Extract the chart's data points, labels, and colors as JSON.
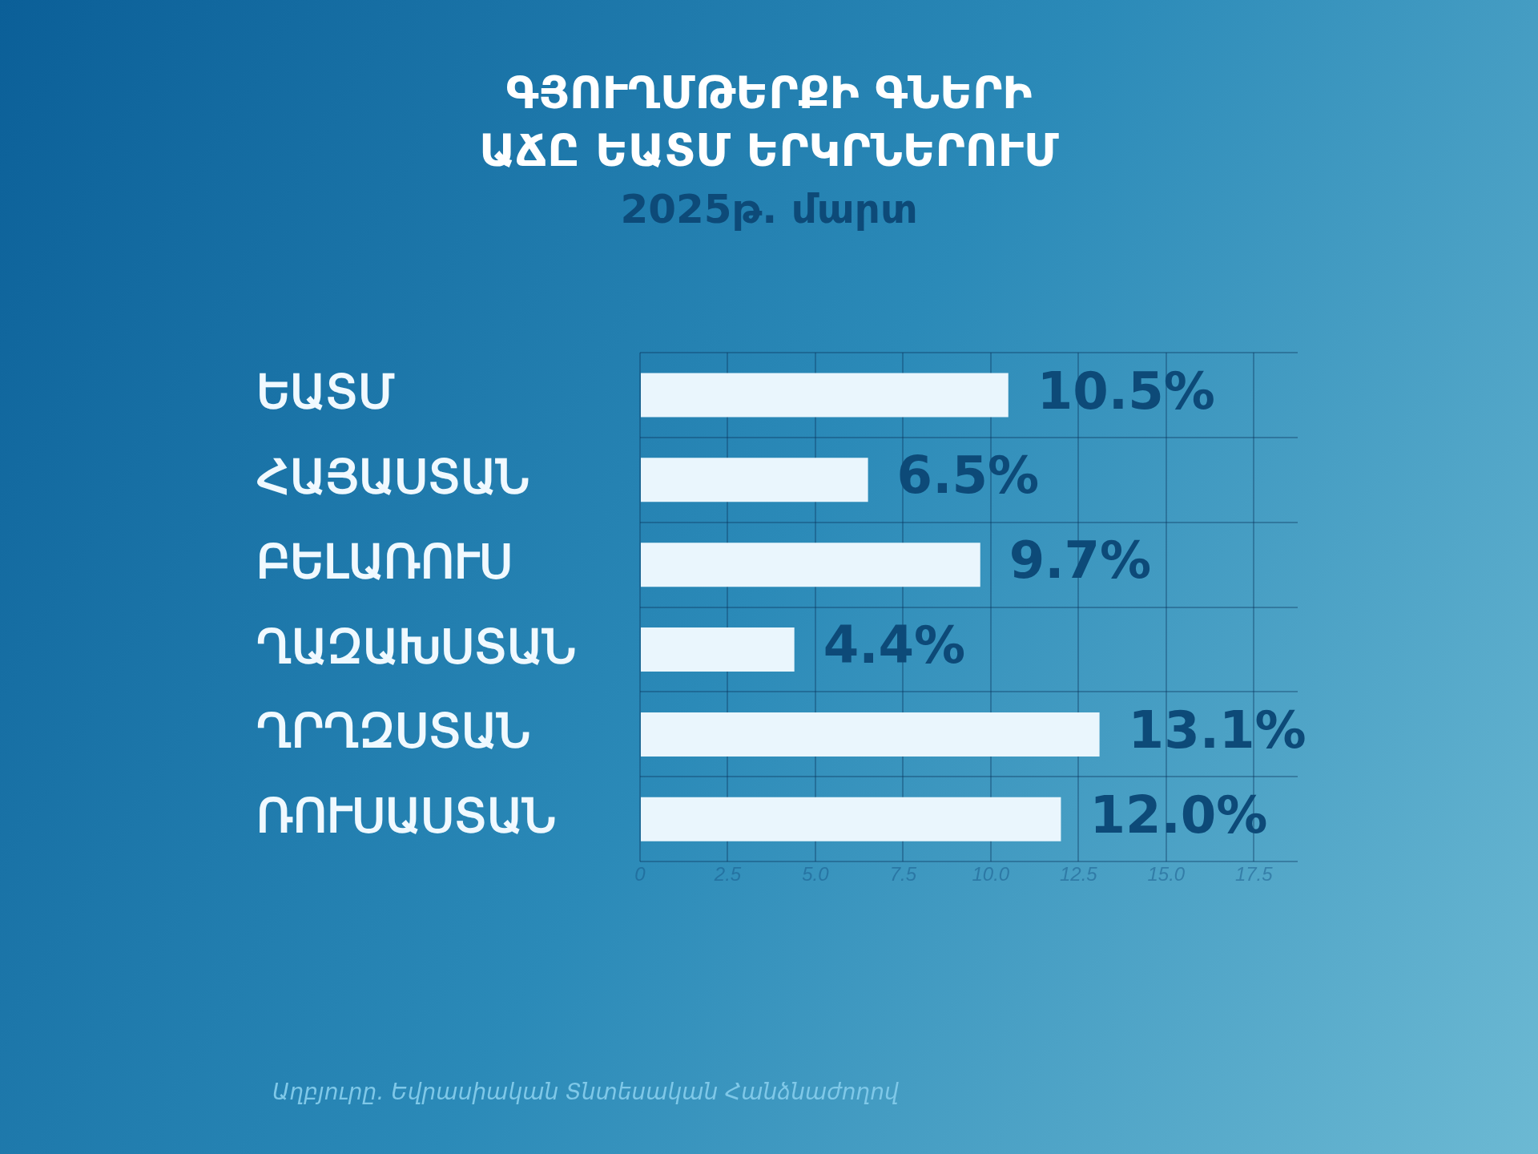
{
  "chart_data": {
    "type": "bar",
    "orientation": "horizontal",
    "title": "ԳՅՈՒՂՄԹԵՐՔԻ ԳՆԵՐԻ ԱՃԸ ԵԱՏՄ ԵՐԿՐՆԵՐՈՒՄ",
    "subtitle": "2025թ. մարտ",
    "categories": [
      "ԵԱՏՄ",
      "ՀԱՅԱՍՏԱՆ",
      "ԲԵԼԱՌՈՒՍ",
      "ՂԱԶԱԽՍՏԱՆ",
      "ՂՐՂԶՍՏԱՆ",
      "ՌՈՒՍԱՍՏԱՆ"
    ],
    "values": [
      10.5,
      6.5,
      9.7,
      4.4,
      13.1,
      12.0
    ],
    "value_labels": [
      "10.5%",
      "6.5%",
      "9.7%",
      "4.4%",
      "13.1%",
      "12.0%"
    ],
    "color": "#eaf6fd",
    "xlim": [
      0,
      18.75
    ],
    "xticks": [
      0,
      {
        "value": 2.5,
        "label": "2.5"
      },
      {
        "value": 5,
        "label": "5.0"
      },
      {
        "value": 7.5,
        "label": "7.5"
      },
      {
        "value": 10,
        "label": "10.0"
      },
      {
        "value": 12.5,
        "label": "12.5"
      },
      {
        "value": 15,
        "label": "15.0"
      },
      {
        "value": 17.5,
        "label": "17.5"
      }
    ],
    "grid": true,
    "legend": false,
    "annotations": [
      "Աղբյուրը․ Եվրասիական Տնտեսական Հանձնաժողով"
    ]
  }
}
